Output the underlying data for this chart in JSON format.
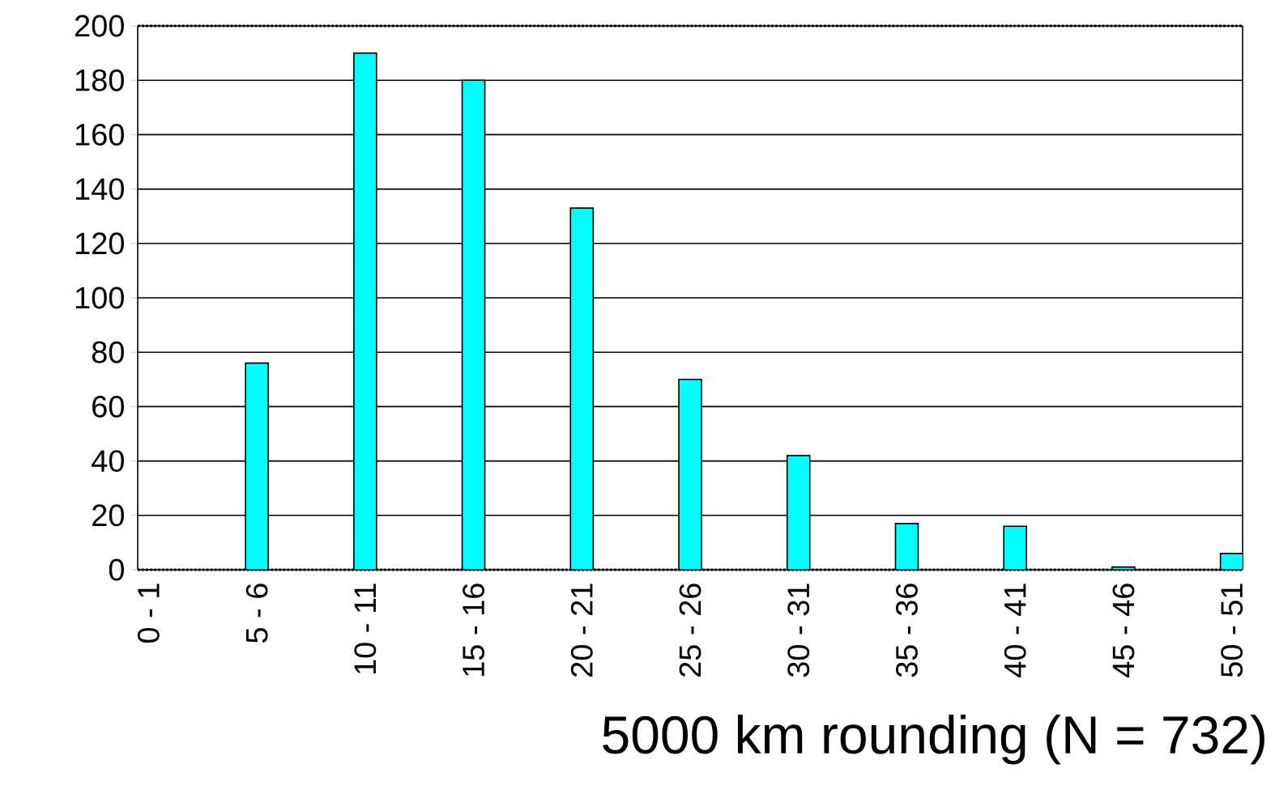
{
  "chart_data": {
    "type": "bar",
    "xlabel": "5000 km rounding (N = 732)",
    "categories": [
      "0 - 1",
      "5 - 6",
      "10 - 11",
      "15 - 16",
      "20 - 21",
      "25 - 26",
      "30 - 31",
      "35 - 36",
      "40 - 41",
      "45 - 46",
      "50 - 51"
    ],
    "values": [
      0,
      76,
      190,
      180,
      133,
      70,
      42,
      17,
      16,
      1,
      6
    ],
    "color": "#00ffff",
    "ylim": [
      0,
      200
    ],
    "yticks": [
      0,
      20,
      40,
      60,
      80,
      100,
      120,
      140,
      160,
      180,
      200
    ],
    "grid": "y"
  }
}
